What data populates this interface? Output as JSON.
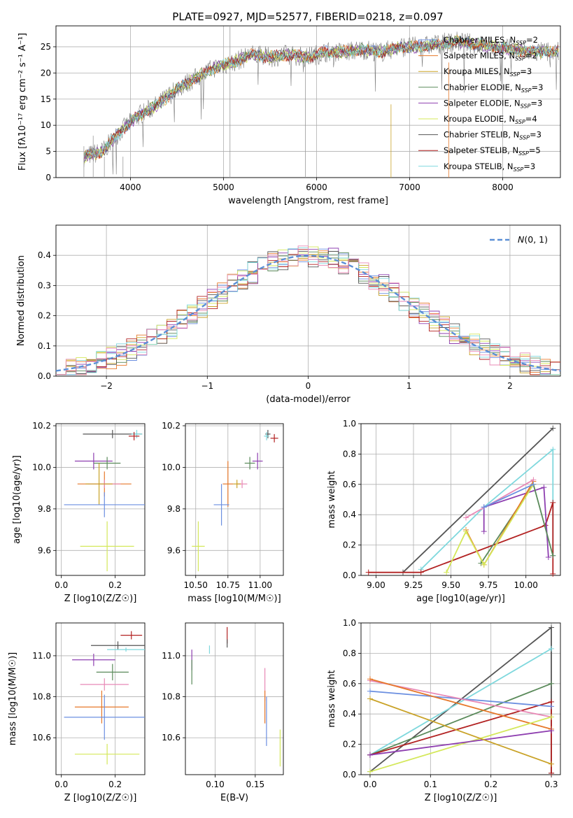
{
  "title": "PLATE=0927, MJD=52577, FIBERID=0218, z=0.097",
  "colors": {
    "chabrier_miles": "#6b8fe0",
    "salpeter_miles": "#e6782a",
    "kroupa_miles": "#c9a227",
    "chabrier_elodie": "#5a8a5a",
    "salpeter_elodie": "#8e3fb0",
    "kroupa_elodie": "#d4e85a",
    "chabrier_stelib": "#555555",
    "salpeter_stelib": "#b22222",
    "kroupa_stelib": "#7fd8dd",
    "pink": "#e889b6",
    "gaussian": "#5b8fd6",
    "grid": "#b0b0b0"
  },
  "chart_data": [
    {
      "id": "spectrum",
      "type": "line",
      "xlabel": "wavelength [Angstrom, rest frame]",
      "ylabel": "Flux [fλ10⁻¹⁷ erg cm⁻² s⁻¹ A⁻¹]",
      "xlim": [
        3200,
        8620
      ],
      "ylim": [
        0,
        29
      ],
      "xticks": [
        4000,
        5000,
        6000,
        7000,
        8000
      ],
      "yticks": [
        0,
        5,
        10,
        15,
        20,
        25
      ],
      "grid": true,
      "legend_position": "right",
      "legend": [
        "Chabrier MILES, N_SSP=2",
        "Salpeter MILES, N_SSP=2",
        "Kroupa MILES, N_SSP=3",
        "Chabrier ELODIE, N_SSP=3",
        "Salpeter ELODIE, N_SSP=3",
        "Kroupa ELODIE, N_SSP=4",
        "Chabrier STELIB, N_SSP=3",
        "Salpeter STELIB, N_SSP=5",
        "Kroupa STELIB, N_SSP=3"
      ],
      "continuum": [
        [
          3500,
          4
        ],
        [
          3700,
          5
        ],
        [
          3900,
          9
        ],
        [
          4100,
          12
        ],
        [
          4300,
          14
        ],
        [
          4500,
          17
        ],
        [
          4700,
          19
        ],
        [
          4900,
          21
        ],
        [
          5100,
          22
        ],
        [
          5300,
          23.5
        ],
        [
          5500,
          23
        ],
        [
          5700,
          23.5
        ],
        [
          5900,
          23
        ],
        [
          6100,
          24
        ],
        [
          6300,
          24
        ],
        [
          6500,
          24.5
        ],
        [
          6700,
          24
        ],
        [
          6900,
          25
        ],
        [
          7100,
          25
        ],
        [
          7300,
          25.5
        ],
        [
          7500,
          26
        ],
        [
          7700,
          25.5
        ],
        [
          7900,
          25
        ],
        [
          8100,
          24.5
        ],
        [
          8300,
          24
        ],
        [
          8600,
          24
        ]
      ]
    },
    {
      "id": "residual_hist",
      "type": "histogram",
      "xlabel": "(data-model)/error",
      "ylabel": "Normed distribution",
      "xlim": [
        -2.5,
        2.5
      ],
      "ylim": [
        0,
        0.5
      ],
      "xticks": [
        -2,
        -1,
        0,
        1,
        2
      ],
      "yticks": [
        0.0,
        0.1,
        0.2,
        0.3,
        0.4
      ],
      "legend": [
        "N(0,1)"
      ],
      "legend_position": "top-right",
      "bin_width": 0.1,
      "grid": true
    },
    {
      "id": "age_vs_Z",
      "type": "scatter",
      "xlabel": "Z [log10(Z/Z☉)]",
      "ylabel": "age  [log10(age/yr)]",
      "xlim": [
        -0.02,
        0.31
      ],
      "ylim": [
        9.48,
        10.21
      ],
      "xticks": [
        0.0,
        0.2
      ],
      "yticks": [
        9.6,
        9.8,
        10.0,
        10.2
      ],
      "points": [
        {
          "x": 0.19,
          "y": 10.16,
          "ex": 0.11,
          "ey": 0.02,
          "c": "chabrier_stelib"
        },
        {
          "x": 0.28,
          "y": 10.16,
          "ex": 0.02,
          "ey": 0.02,
          "c": "kroupa_stelib"
        },
        {
          "x": 0.27,
          "y": 10.15,
          "ex": 0.02,
          "ey": 0.02,
          "c": "salpeter_stelib"
        },
        {
          "x": 0.12,
          "y": 10.03,
          "ex": 0.07,
          "ey": 0.04,
          "c": "salpeter_elodie"
        },
        {
          "x": 0.17,
          "y": 10.02,
          "ex": 0.05,
          "ey": 0.03,
          "c": "chabrier_elodie"
        },
        {
          "x": 0.16,
          "y": 9.92,
          "ex": 0.1,
          "ey": 0.06,
          "c": "salpeter_miles"
        },
        {
          "x": 0.16,
          "y": 9.92,
          "ex": 0.06,
          "ey": 0.02,
          "c": "pink"
        },
        {
          "x": 0.14,
          "y": 9.92,
          "ex": 0.05,
          "ey": 0.1,
          "c": "kroupa_miles"
        },
        {
          "x": 0.16,
          "y": 9.82,
          "ex": 0.15,
          "ey": 0.06,
          "c": "chabrier_miles"
        },
        {
          "x": 0.17,
          "y": 9.62,
          "ex": 0.1,
          "ey": 0.12,
          "c": "kroupa_elodie"
        }
      ]
    },
    {
      "id": "age_vs_mass",
      "type": "scatter",
      "xlabel": "mass [log10(M/M☉)]",
      "xlim": [
        10.42,
        11.18
      ],
      "ylim": [
        9.48,
        10.21
      ],
      "xticks": [
        10.5,
        10.75,
        11.0
      ],
      "xtick_labels": [
        "10.50",
        "10.75",
        "11.00"
      ],
      "yticks": [
        9.6,
        9.8,
        10.0,
        10.2
      ],
      "points": [
        {
          "x": 11.06,
          "y": 10.16,
          "ex": 0.02,
          "ey": 0.02,
          "c": "chabrier_stelib"
        },
        {
          "x": 11.05,
          "y": 10.15,
          "ex": 0.02,
          "ey": 0.02,
          "c": "kroupa_stelib"
        },
        {
          "x": 11.11,
          "y": 10.14,
          "ex": 0.03,
          "ey": 0.02,
          "c": "salpeter_stelib"
        },
        {
          "x": 10.98,
          "y": 10.03,
          "ex": 0.04,
          "ey": 0.04,
          "c": "salpeter_elodie"
        },
        {
          "x": 10.92,
          "y": 10.02,
          "ex": 0.04,
          "ey": 0.03,
          "c": "chabrier_elodie"
        },
        {
          "x": 10.75,
          "y": 9.92,
          "ex": 0.04,
          "ey": 0.11,
          "c": "salpeter_miles"
        },
        {
          "x": 10.86,
          "y": 9.92,
          "ex": 0.04,
          "ey": 0.02,
          "c": "pink"
        },
        {
          "x": 10.82,
          "y": 9.92,
          "ex": 0.03,
          "ey": 0.02,
          "c": "kroupa_miles"
        },
        {
          "x": 10.7,
          "y": 9.82,
          "ex": 0.06,
          "ey": 0.1,
          "c": "chabrier_miles"
        },
        {
          "x": 10.52,
          "y": 9.62,
          "ex": 0.05,
          "ey": 0.12,
          "c": "kroupa_elodie"
        }
      ]
    },
    {
      "id": "mass_weight_vs_age",
      "type": "line",
      "xlabel": "age  [log10(age/yr)]",
      "ylabel": "mass weight",
      "xlim": [
        8.9,
        10.23
      ],
      "ylim": [
        0,
        1
      ],
      "xticks": [
        9.0,
        9.25,
        9.5,
        9.75,
        10.0
      ],
      "xtick_labels": [
        "9.00",
        "9.25",
        "9.50",
        "9.75",
        "10.00"
      ],
      "yticks": [
        0.0,
        0.2,
        0.4,
        0.6,
        0.8,
        1.0
      ],
      "series": [
        {
          "c": "chabrier_stelib",
          "pts": [
            [
              9.18,
              0.02
            ],
            [
              10.18,
              0.97
            ]
          ]
        },
        {
          "c": "kroupa_stelib",
          "pts": [
            [
              9.3,
              0.04
            ],
            [
              9.72,
              0.45
            ],
            [
              10.18,
              0.83
            ],
            [
              10.18,
              0.13
            ]
          ]
        },
        {
          "c": "salpeter_stelib",
          "pts": [
            [
              8.95,
              0.02
            ],
            [
              9.3,
              0.02
            ],
            [
              10.13,
              0.33
            ],
            [
              10.18,
              0.48
            ],
            [
              10.18,
              0.01
            ]
          ]
        },
        {
          "c": "salpeter_elodie",
          "pts": [
            [
              9.72,
              0.29
            ],
            [
              9.72,
              0.45
            ],
            [
              10.12,
              0.58
            ],
            [
              10.15,
              0.12
            ]
          ]
        },
        {
          "c": "chabrier_elodie",
          "pts": [
            [
              9.7,
              0.08
            ],
            [
              10.05,
              0.6
            ],
            [
              10.18,
              0.13
            ]
          ]
        },
        {
          "c": "salpeter_miles",
          "pts": [
            [
              9.6,
              0.3
            ],
            [
              9.72,
              0.07
            ],
            [
              10.05,
              0.62
            ]
          ]
        },
        {
          "c": "pink",
          "pts": [
            [
              9.6,
              0.38
            ],
            [
              10.05,
              0.63
            ]
          ]
        },
        {
          "c": "kroupa_elodie",
          "pts": [
            [
              9.47,
              0.02
            ],
            [
              9.6,
              0.29
            ],
            [
              9.72,
              0.07
            ],
            [
              10.05,
              0.6
            ]
          ]
        },
        {
          "c": "chabrier_miles",
          "pts": [
            [
              9.72,
              0.45
            ],
            [
              10.05,
              0.6
            ]
          ]
        }
      ]
    },
    {
      "id": "mass_vs_Z",
      "type": "scatter",
      "xlabel": "Z [log10(Z/Z☉)]",
      "ylabel": "mass [log10(M/M☉)]",
      "xlim": [
        -0.02,
        0.31
      ],
      "ylim": [
        10.42,
        11.16
      ],
      "xticks": [
        0.0,
        0.2
      ],
      "yticks": [
        10.6,
        10.8,
        11.0
      ],
      "points": [
        {
          "x": 0.26,
          "y": 11.1,
          "ex": 0.04,
          "ey": 0.02,
          "c": "salpeter_stelib"
        },
        {
          "x": 0.21,
          "y": 11.05,
          "ex": 0.1,
          "ey": 0.02,
          "c": "chabrier_stelib"
        },
        {
          "x": 0.24,
          "y": 11.03,
          "ex": 0.07,
          "ey": 0.01,
          "c": "kroupa_stelib"
        },
        {
          "x": 0.12,
          "y": 10.98,
          "ex": 0.08,
          "ey": 0.03,
          "c": "salpeter_elodie"
        },
        {
          "x": 0.19,
          "y": 10.92,
          "ex": 0.06,
          "ey": 0.04,
          "c": "chabrier_elodie"
        },
        {
          "x": 0.16,
          "y": 10.86,
          "ex": 0.09,
          "ey": 0.03,
          "c": "pink"
        },
        {
          "x": 0.15,
          "y": 10.75,
          "ex": 0.1,
          "ey": 0.08,
          "c": "salpeter_miles"
        },
        {
          "x": 0.16,
          "y": 10.7,
          "ex": 0.15,
          "ey": 0.11,
          "c": "chabrier_miles"
        },
        {
          "x": 0.17,
          "y": 10.52,
          "ex": 0.12,
          "ey": 0.05,
          "c": "kroupa_elodie"
        }
      ]
    },
    {
      "id": "mass_vs_ebv",
      "type": "scatter",
      "xlabel": "E(B-V)",
      "xlim": [
        0.063,
        0.185
      ],
      "ylim": [
        10.42,
        11.16
      ],
      "xticks": [
        0.1,
        0.15
      ],
      "xtick_labels": [
        "0.10",
        "0.15"
      ],
      "yticks": [
        10.6,
        10.8,
        11.0
      ],
      "points": [
        {
          "x": 0.115,
          "y": 11.1,
          "ey": 0.04,
          "c": "salpeter_stelib"
        },
        {
          "x": 0.115,
          "y": 11.06,
          "ey": 0.02,
          "c": "chabrier_stelib"
        },
        {
          "x": 0.093,
          "y": 11.03,
          "ey": 0.02,
          "c": "kroupa_stelib"
        },
        {
          "x": 0.071,
          "y": 10.98,
          "ey": 0.05,
          "c": "salpeter_elodie"
        },
        {
          "x": 0.071,
          "y": 10.92,
          "ey": 0.06,
          "c": "chabrier_elodie"
        },
        {
          "x": 0.162,
          "y": 10.86,
          "ey": 0.08,
          "c": "pink"
        },
        {
          "x": 0.162,
          "y": 10.75,
          "ey": 0.08,
          "c": "salpeter_miles"
        },
        {
          "x": 0.164,
          "y": 10.68,
          "ey": 0.12,
          "c": "chabrier_miles"
        },
        {
          "x": 0.181,
          "y": 10.55,
          "ey": 0.09,
          "c": "kroupa_elodie"
        }
      ]
    },
    {
      "id": "mass_weight_vs_Z",
      "type": "line",
      "xlabel": "Z [log10(Z/Z☉)]",
      "ylabel": "mass weight",
      "xlim": [
        -0.015,
        0.315
      ],
      "ylim": [
        0,
        1
      ],
      "xticks": [
        0.0,
        0.1,
        0.2,
        0.3
      ],
      "xtick_labels": [
        "0.0",
        "0.1",
        "0.2",
        "0.3"
      ],
      "yticks": [
        0.0,
        0.2,
        0.4,
        0.6,
        0.8,
        1.0
      ],
      "series": [
        {
          "c": "chabrier_stelib",
          "pts": [
            [
              0.0,
              0.02
            ],
            [
              0.3,
              0.97
            ],
            [
              0.3,
              0.01
            ]
          ]
        },
        {
          "c": "kroupa_stelib",
          "pts": [
            [
              0.0,
              0.13
            ],
            [
              0.3,
              0.83
            ]
          ]
        },
        {
          "c": "chabrier_elodie",
          "pts": [
            [
              0.0,
              0.13
            ],
            [
              0.3,
              0.6
            ]
          ]
        },
        {
          "c": "salpeter_stelib",
          "pts": [
            [
              0.0,
              0.13
            ],
            [
              0.3,
              0.48
            ],
            [
              0.3,
              0.01
            ]
          ]
        },
        {
          "c": "chabrier_miles",
          "pts": [
            [
              0.0,
              0.55
            ],
            [
              0.3,
              0.45
            ]
          ]
        },
        {
          "c": "pink",
          "pts": [
            [
              0.0,
              0.62
            ],
            [
              0.3,
              0.38
            ]
          ]
        },
        {
          "c": "salpeter_miles",
          "pts": [
            [
              0.0,
              0.63
            ],
            [
              0.3,
              0.3
            ]
          ]
        },
        {
          "c": "kroupa_elodie",
          "pts": [
            [
              0.0,
              0.02
            ],
            [
              0.3,
              0.38
            ]
          ]
        },
        {
          "c": "salpeter_elodie",
          "pts": [
            [
              0.0,
              0.13
            ],
            [
              0.3,
              0.29
            ]
          ]
        },
        {
          "c": "kroupa_miles",
          "pts": [
            [
              0.0,
              0.5
            ],
            [
              0.3,
              0.07
            ]
          ]
        }
      ]
    }
  ]
}
